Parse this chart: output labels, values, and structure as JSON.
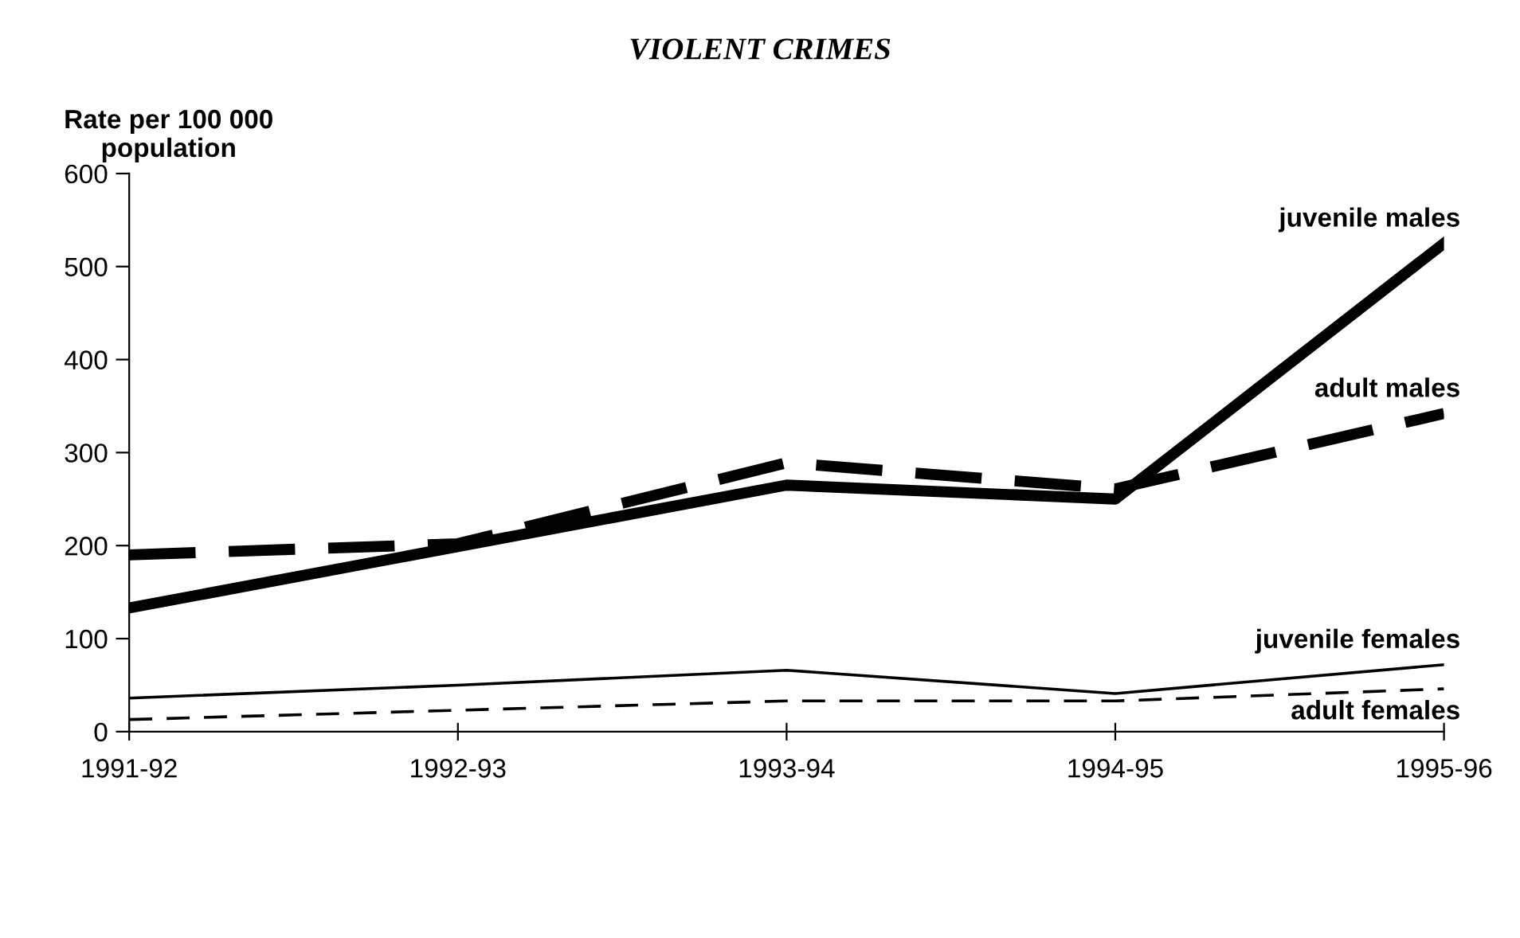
{
  "chart_data": {
    "type": "line",
    "title": "VIOLENT CRIMES",
    "ylabel": "Rate per 100 000\npopulation",
    "categories": [
      "1991-92",
      "1992-93",
      "1993-94",
      "1994-95",
      "1995-96"
    ],
    "series": [
      {
        "name": "juvenile males",
        "color": "#000000",
        "line_style": "solid",
        "values": [
          133,
          199,
          265,
          250,
          525
        ]
      },
      {
        "name": "adult males",
        "color": "#000000",
        "line_style": "dashed",
        "values": [
          190,
          202,
          289,
          261,
          342
        ]
      },
      {
        "name": "juvenile females",
        "color": "#000000",
        "line_style": "solid",
        "values": [
          36,
          50,
          66,
          41,
          72
        ]
      },
      {
        "name": "adult females",
        "color": "#000000",
        "line_style": "dashed",
        "values": [
          13,
          23,
          33,
          33,
          46
        ]
      }
    ],
    "ylim": [
      0,
      600
    ],
    "yticks": [
      0,
      100,
      200,
      300,
      400,
      500,
      600
    ],
    "grid": false,
    "marker": "none"
  }
}
